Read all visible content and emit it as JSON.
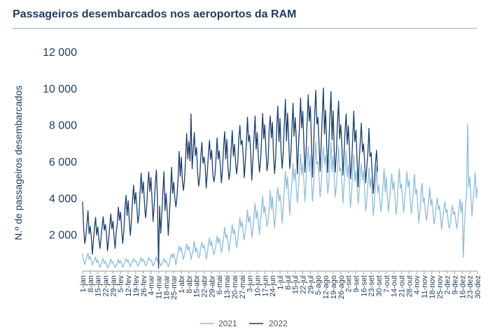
{
  "header": {
    "title": "Passageiros desembarcados nos aeroportos da RAM"
  },
  "colors": {
    "series_2021": "#8fbcdc",
    "series_2022": "#1a3f6b",
    "axis": "#9a9a9a",
    "text": "#1f3b5c"
  },
  "chart_data": {
    "type": "line",
    "title": "Passageiros desembarcados nos aeroportos da RAM",
    "xlabel": "",
    "ylabel": "N.º de passageiros desembarcados",
    "ylim": [
      0,
      12000
    ],
    "yticks": [
      2000,
      4000,
      6000,
      8000,
      10000,
      12000
    ],
    "ytick_labels": [
      "2 000",
      "4 000",
      "6 000",
      "8 000",
      "10 000",
      "12 000"
    ],
    "xticks": [
      "1-jan",
      "8-jan",
      "15-jan",
      "22-jan",
      "29-jan",
      "5-fev",
      "12-fev",
      "19-fev",
      "26-fev",
      "4-mar",
      "11-mar",
      "18-mar",
      "25-mar",
      "1-abr",
      "8-abr",
      "15-abr",
      "22-abr",
      "29-abr",
      "6-mai",
      "13-mai",
      "20-mai",
      "27-mai",
      "3-jun",
      "10-jun",
      "17-jun",
      "24-jun",
      "1-jul",
      "8-jul",
      "15-jul",
      "22-jul",
      "29-jul",
      "5-ago",
      "12-ago",
      "19-ago",
      "26-ago",
      "2-set",
      "9-set",
      "16-set",
      "23-set",
      "30-set",
      "7-out",
      "14-out",
      "21-out",
      "28-out",
      "4-nov",
      "11-nov",
      "18-nov",
      "25-nov",
      "2-dez",
      "9-dez",
      "16-dez",
      "23-dez",
      "30-dez"
    ],
    "grid": false,
    "legend": "bottom",
    "series": [
      {
        "name": "2021",
        "weekly_x": [
          1,
          8,
          15,
          22,
          29,
          36,
          43,
          50,
          57,
          64,
          71,
          78,
          85,
          92,
          99,
          106,
          113,
          120,
          127,
          134,
          141,
          148,
          155,
          162,
          169,
          176,
          183,
          190,
          197,
          204,
          211,
          218,
          225,
          232,
          239,
          246,
          253,
          260,
          267,
          274,
          281,
          288,
          295,
          302,
          309,
          316,
          323,
          330,
          337,
          344,
          351,
          358,
          364
        ],
        "weekly_avg": [
          700,
          600,
          450,
          400,
          380,
          420,
          450,
          480,
          500,
          520,
          500,
          420,
          700,
          1000,
          1050,
          1050,
          1150,
          1250,
          1450,
          1700,
          1900,
          2200,
          2600,
          2900,
          3100,
          3300,
          3600,
          4300,
          4800,
          5100,
          5300,
          5400,
          5400,
          5300,
          5100,
          4900,
          4800,
          4600,
          4400,
          4200,
          4300,
          4200,
          4200,
          4200,
          3900,
          3600,
          3300,
          3100,
          3000,
          2800,
          3200,
          4500,
          4000
        ],
        "weekly_amp": [
          400,
          300,
          250,
          250,
          250,
          250,
          250,
          250,
          250,
          250,
          250,
          250,
          400,
          500,
          500,
          500,
          500,
          550,
          600,
          700,
          750,
          800,
          900,
          950,
          1000,
          1050,
          1200,
          1400,
          1450,
          1500,
          1500,
          1500,
          1500,
          1500,
          1450,
          1400,
          1400,
          1350,
          1300,
          1300,
          1300,
          1250,
          1250,
          1250,
          1200,
          1100,
          1000,
          950,
          900,
          850,
          900,
          1400,
          1200
        ],
        "peaks": [
          {
            "x": 356,
            "y": 8050
          },
          {
            "x": 352,
            "y": 750
          }
        ]
      },
      {
        "name": "2022",
        "weekly_x": [
          1,
          8,
          15,
          22,
          29,
          36,
          43,
          50,
          57,
          64,
          71,
          78,
          85,
          92,
          99,
          106,
          113,
          120,
          127,
          134,
          141,
          148,
          155,
          162,
          169,
          176,
          183,
          190,
          197,
          204,
          211,
          218,
          225,
          232,
          239,
          246,
          253,
          260,
          267,
          273
        ],
        "weekly_avg": [
          2800,
          1900,
          2000,
          2100,
          2200,
          2500,
          3000,
          3600,
          4000,
          4200,
          3700,
          3200,
          4300,
          5200,
          6200,
          5800,
          5700,
          5800,
          6000,
          6200,
          6300,
          6500,
          6600,
          6700,
          6800,
          6900,
          7000,
          7200,
          7300,
          7400,
          7500,
          7500,
          7400,
          7200,
          7000,
          6700,
          6500,
          6200,
          5800,
          5200
        ],
        "weekly_amp": [
          1100,
          1000,
          1000,
          1000,
          1000,
          1100,
          1200,
          1300,
          1300,
          1400,
          1800,
          1800,
          1400,
          1500,
          1700,
          1500,
          1400,
          1400,
          1400,
          1500,
          1500,
          1600,
          1700,
          1800,
          1800,
          1900,
          2000,
          2100,
          2200,
          2300,
          2400,
          2400,
          2300,
          2200,
          2100,
          2000,
          1900,
          1800,
          1700,
          1500
        ],
        "peaks": [
          {
            "x": 1,
            "y": 3800
          },
          {
            "x": 101,
            "y": 8600
          },
          {
            "x": 71,
            "y": 150
          }
        ]
      }
    ]
  }
}
